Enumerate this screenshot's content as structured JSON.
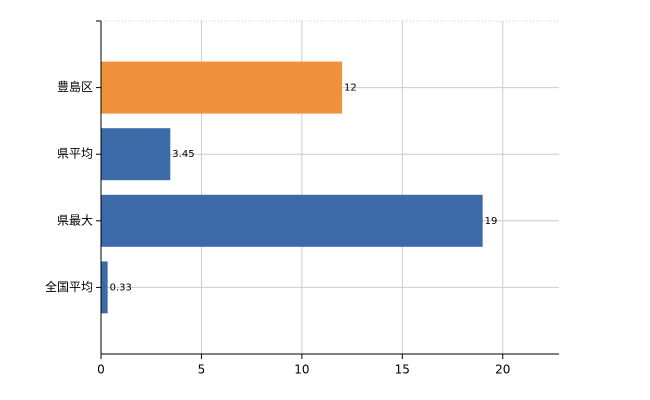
{
  "chart_data": {
    "type": "bar",
    "orientation": "horizontal",
    "categories": [
      "豊島区",
      "県平均",
      "県最大",
      "全国平均"
    ],
    "values": [
      12,
      3.45,
      19,
      0.33
    ],
    "colors": [
      "#f0903a",
      "#3d6aa8",
      "#3d6aa8",
      "#3d6aa8"
    ],
    "xlim": [
      0,
      22.8
    ],
    "xticks": [
      0,
      5,
      10,
      15,
      20
    ],
    "grid": true
  }
}
